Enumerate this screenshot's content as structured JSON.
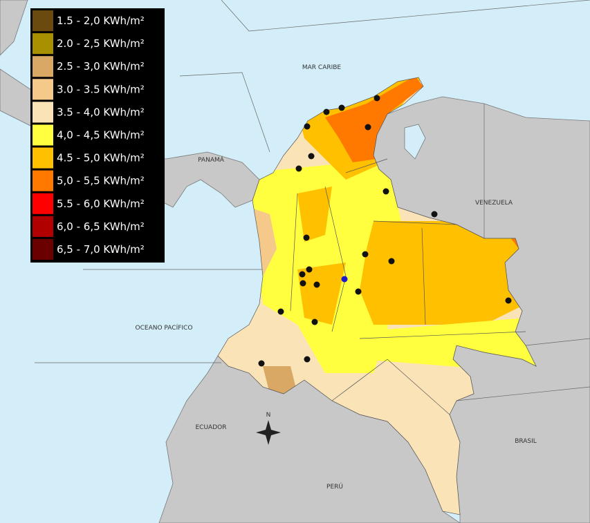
{
  "legend": {
    "items": [
      {
        "label": "1.5 - 2,0 KWh/m²",
        "color": "#6b4a10"
      },
      {
        "label": "2.0 - 2,5 KWh/m²",
        "color": "#a89000"
      },
      {
        "label": "2.5 - 3,0 KWh/m²",
        "color": "#d9a865"
      },
      {
        "label": "3.0 - 3.5 KWh/m²",
        "color": "#f5c98a"
      },
      {
        "label": "3.5 - 4,0 KWh/m²",
        "color": "#fbe3b8"
      },
      {
        "label": "4,0 - 4,5 KWh/m²",
        "color": "#ffff40"
      },
      {
        "label": "4.5 - 5,0 KWh/m²",
        "color": "#ffc000"
      },
      {
        "label": "5,0 - 5,5 KWh/m²",
        "color": "#ff7800"
      },
      {
        "label": "5.5 - 6,0 KWh/m²",
        "color": "#ff0000"
      },
      {
        "label": "6,0 - 6,5 KWh/m²",
        "color": "#b00000"
      },
      {
        "label": "6,5 - 7,0 KWh/m²",
        "color": "#6a0000"
      }
    ]
  },
  "labels": [
    "MAR CARIBE",
    "PANAMÁ",
    "VENEZUELA",
    "OCEANO PACÍFICO",
    "ECUADOR",
    "BRASIL",
    "PERÚ",
    "N"
  ]
}
